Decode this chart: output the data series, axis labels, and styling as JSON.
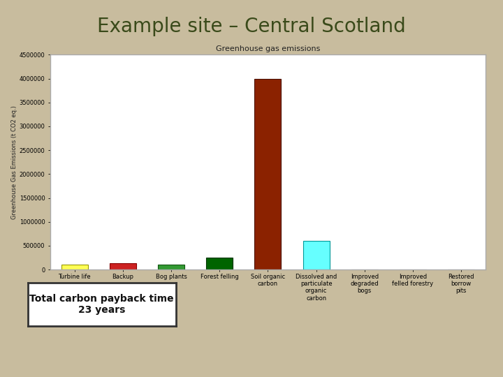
{
  "title": "Example site – Central Scotland",
  "chart_title": "Greenhouse gas emissions",
  "ylabel": "Greenhouse Gas Emissions (t CO2 eq.)",
  "categories": [
    "Turbine life",
    "Backup",
    "Bog plants",
    "Forest felling",
    "Soil organic\ncarbon",
    "Dissolved and\nparticulate\norganic\ncarbon",
    "Improved\ndegraded\nbogs",
    "Improved\nfelled forestry",
    "Restored\nborrow\npits"
  ],
  "values": [
    100000,
    130000,
    100000,
    250000,
    4000000,
    600000,
    2000,
    2000,
    2000
  ],
  "bar_colors": [
    "#FFFF55",
    "#CC2222",
    "#339933",
    "#006400",
    "#8B2200",
    "#66FFFF",
    "#CCCCCC",
    "#CCCCCC",
    "#CCCCCC"
  ],
  "bar_edge_colors": [
    "#999900",
    "#880000",
    "#115511",
    "#003300",
    "#4A1000",
    "#009999",
    "#999999",
    "#999999",
    "#999999"
  ],
  "ylim": [
    0,
    4500000
  ],
  "yticks": [
    0,
    500000,
    1000000,
    1500000,
    2000000,
    2500000,
    3000000,
    3500000,
    4000000,
    4500000
  ],
  "bg_color": "#C8BC9E",
  "chart_bg": "#FFFFFF",
  "chart_border_color": "#AAAAAA",
  "title_fontsize": 20,
  "title_color": "#3A4A1A",
  "axis_fontsize": 6,
  "ylabel_fontsize": 6,
  "chart_title_fontsize": 8,
  "note_text": "Total carbon payback time\n23 years",
  "note_fontsize": 10,
  "note_fontweight": "bold"
}
